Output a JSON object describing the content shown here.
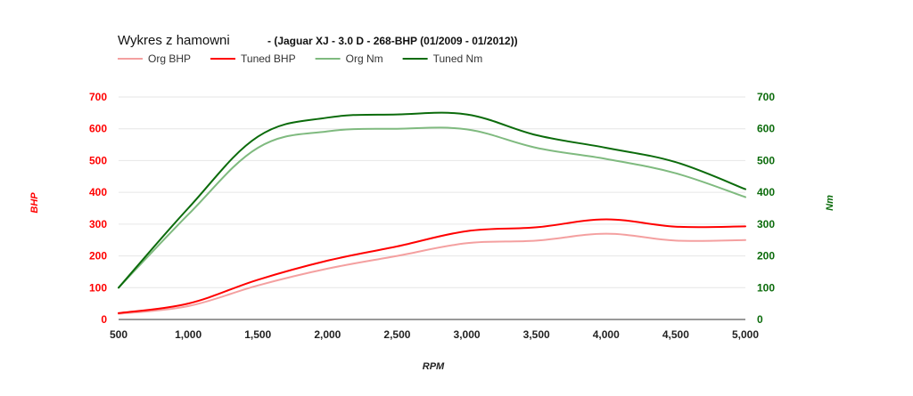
{
  "chart_data": {
    "type": "line",
    "title": "Wykres z hamowni",
    "subtitle": "- (Jaguar XJ - 3.0 D - 268-BHP (01/2009 - 01/2012))",
    "xlabel": "RPM",
    "ylabel_left": "BHP",
    "ylabel_right": "Nm",
    "x": [
      500,
      1000,
      1500,
      2000,
      2500,
      3000,
      3500,
      4000,
      4500,
      5000
    ],
    "x_tick_labels": [
      "500",
      "1,000",
      "1,500",
      "2,000",
      "2,500",
      "3,000",
      "3,500",
      "4,000",
      "4,500",
      "5,000"
    ],
    "xlim": [
      500,
      5000
    ],
    "ylim_left": [
      0,
      700
    ],
    "ylim_right": [
      0,
      700
    ],
    "y_ticks_left": [
      "0",
      "100",
      "200",
      "300",
      "400",
      "500",
      "600",
      "700"
    ],
    "y_ticks_right": [
      "0",
      "100",
      "200",
      "300",
      "400",
      "500",
      "600",
      "700"
    ],
    "grid": true,
    "legend_position": "top-left",
    "series": [
      {
        "name": "Org BHP",
        "axis": "left",
        "color": "#f4a0a0",
        "values": [
          18,
          42,
          107,
          160,
          200,
          240,
          248,
          270,
          248,
          250
        ]
      },
      {
        "name": "Tuned BHP",
        "axis": "left",
        "color": "#ff0000",
        "values": [
          20,
          50,
          125,
          185,
          230,
          278,
          290,
          315,
          292,
          293
        ]
      },
      {
        "name": "Org Nm",
        "axis": "right",
        "color": "#7fba7f",
        "values": [
          100,
          330,
          540,
          592,
          600,
          598,
          540,
          505,
          460,
          385
        ]
      },
      {
        "name": "Tuned Nm",
        "axis": "right",
        "color": "#0b6b0b",
        "values": [
          100,
          350,
          575,
          635,
          645,
          645,
          580,
          540,
          495,
          410
        ]
      }
    ],
    "left_axis_color": "#ff0000",
    "right_axis_color": "#0b6b0b"
  }
}
